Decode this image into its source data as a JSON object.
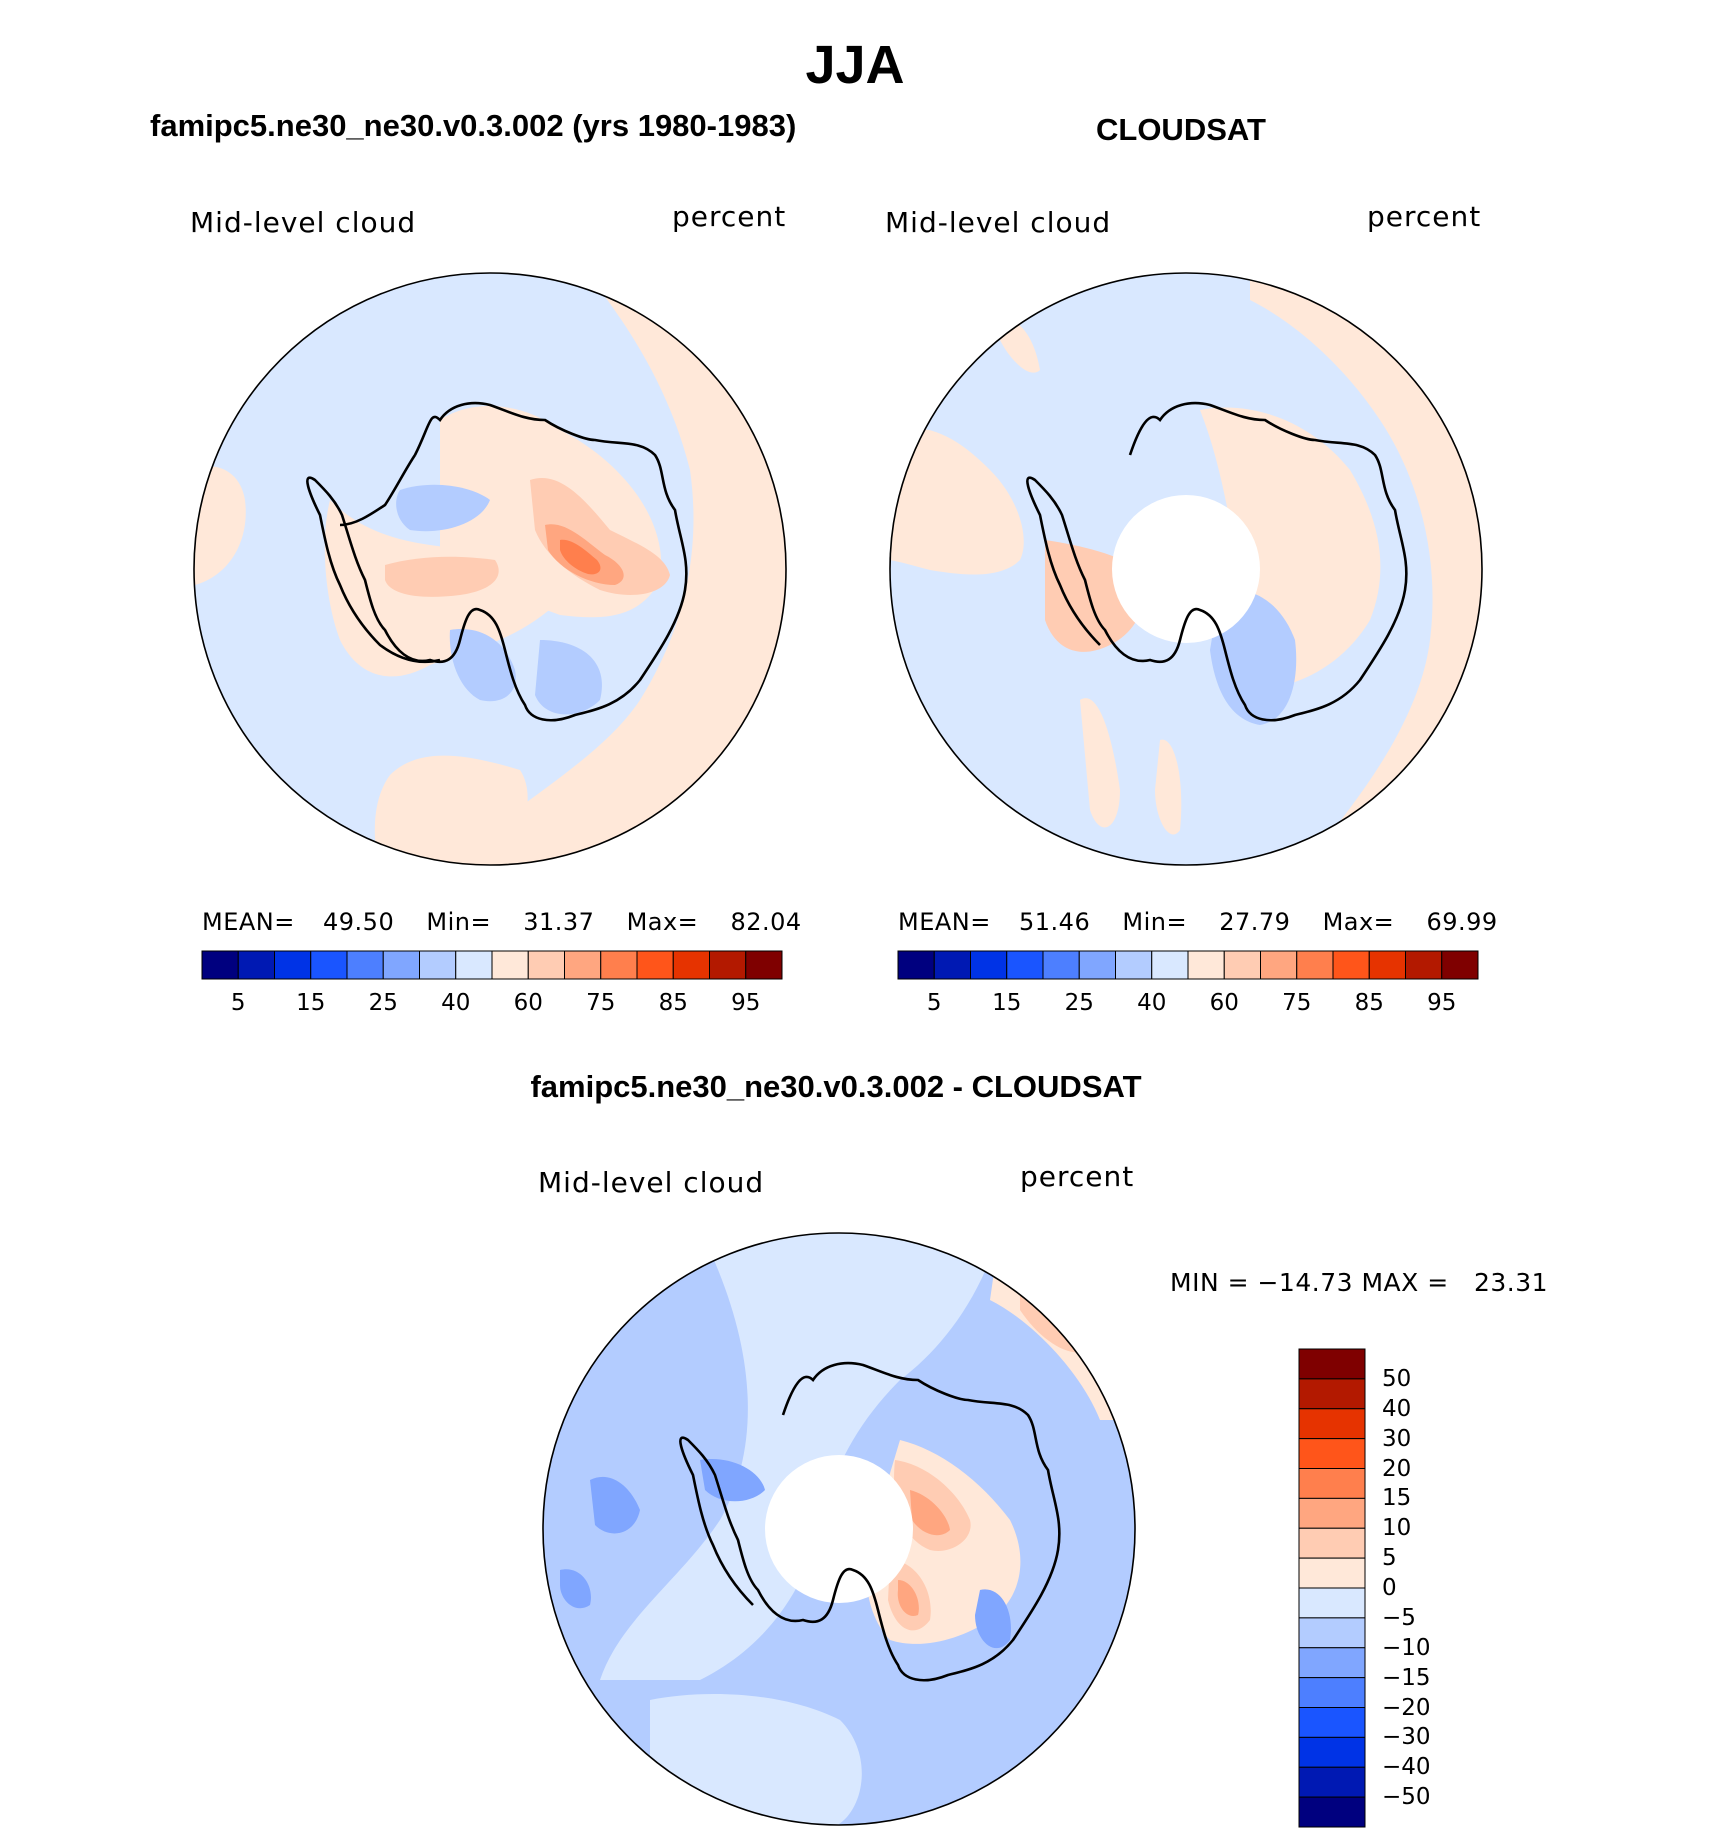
{
  "figure": {
    "title": "JJA",
    "left_panel_title": "famipc5.ne30_ne30.v0.3.002 (yrs 1980-1983)",
    "right_panel_title": "CLOUDSAT",
    "diff_panel_title": "famipc5.ne30_ne30.v0.3.002 - CLOUDSAT"
  },
  "colors": {
    "abs_scale": [
      "#00007f",
      "#0019b3",
      "#0033e6",
      "#1a55ff",
      "#4d7fff",
      "#80a6ff",
      "#b3ccff",
      "#d9e8ff",
      "#ffe8d9",
      "#ffccb3",
      "#ffa680",
      "#ff7f4d",
      "#ff551a",
      "#e63300",
      "#b31900",
      "#7f0000"
    ],
    "diff_scale": [
      "#00007f",
      "#0019b3",
      "#0033e6",
      "#1a55ff",
      "#4d7fff",
      "#80a6ff",
      "#b3ccff",
      "#d9e8ff",
      "#ffe8d9",
      "#ffccb3",
      "#ffa680",
      "#ff7f4d",
      "#ff551a",
      "#e63300",
      "#b31900",
      "#7f0000"
    ],
    "coast": "#000000"
  },
  "chart_data": [
    {
      "type": "heatmap",
      "projection": "south-polar-stereographic",
      "title": "famipc5.ne30_ne30.v0.3.002 (yrs 1980-1983)",
      "variable": "Mid-level cloud",
      "units": "percent",
      "stats": {
        "mean_label": "MEAN=",
        "mean": "49.50",
        "min_label": "Min=",
        "min": "31.37",
        "max_label": "Max=",
        "max": "82.04"
      },
      "colorbar_ticks": [
        "5",
        "15",
        "25",
        "40",
        "60",
        "75",
        "85",
        "95"
      ],
      "regions": [
        {
          "name": "background",
          "level": 7
        },
        {
          "name": "east-ring-sector",
          "level": 8
        },
        {
          "name": "ne-ring-blob",
          "level": 9
        },
        {
          "name": "west-edge-blob",
          "level": 8
        },
        {
          "name": "south-ring-blob",
          "level": 8
        },
        {
          "name": "peninsula-band",
          "level": 8
        },
        {
          "name": "east-antarctic-interior",
          "level": 8
        },
        {
          "name": "central-ridge",
          "level": 9
        },
        {
          "name": "east-ridge",
          "level": 9
        },
        {
          "name": "east-ridge-core",
          "level": 10
        },
        {
          "name": "east-ridge-max",
          "level": 11
        },
        {
          "name": "weddell-low",
          "level": 6
        },
        {
          "name": "ross-low",
          "level": 6
        },
        {
          "name": "pacific-low",
          "level": 6
        }
      ]
    },
    {
      "type": "heatmap",
      "projection": "south-polar-stereographic",
      "title": "CLOUDSAT",
      "variable": "Mid-level cloud",
      "units": "percent",
      "stats": {
        "mean_label": "MEAN=",
        "mean": "51.46",
        "min_label": "Min=",
        "min": "27.79",
        "max_label": "Max=",
        "max": "69.99"
      },
      "colorbar_ticks": [
        "5",
        "15",
        "25",
        "40",
        "60",
        "75",
        "85",
        "95"
      ],
      "missing_region": "pole-hole",
      "regions": [
        {
          "name": "background",
          "level": 7
        },
        {
          "name": "east-ring-sector",
          "level": 8
        },
        {
          "name": "west-ring-sector",
          "level": 8
        },
        {
          "name": "peninsula-band",
          "level": 9
        },
        {
          "name": "east-antarctic",
          "level": 8
        },
        {
          "name": "ross-low",
          "level": 6
        },
        {
          "name": "ring-streaks",
          "level": 8
        }
      ]
    },
    {
      "type": "heatmap",
      "projection": "south-polar-stereographic",
      "title": "famipc5.ne30_ne30.v0.3.002 - CLOUDSAT",
      "variable": "Mid-level cloud",
      "units": "percent",
      "range_label": "MIN = −14.73 MAX =   23.31",
      "min": -14.73,
      "max": 23.31,
      "colorbar_ticks": [
        "50",
        "40",
        "30",
        "20",
        "15",
        "10",
        "5",
        "0",
        "−5",
        "−10",
        "−15",
        "−20",
        "−30",
        "−40",
        "−50"
      ],
      "missing_region": "pole-hole",
      "regions": [
        {
          "name": "background",
          "level": 6
        },
        {
          "name": "ocean-light",
          "level": 7
        },
        {
          "name": "east-positive",
          "level": 8
        },
        {
          "name": "east-positive-core",
          "level": 9
        },
        {
          "name": "east-positive-max",
          "level": 10
        },
        {
          "name": "west-negative",
          "level": 5
        },
        {
          "name": "ne-edge-positive",
          "level": 9
        }
      ]
    }
  ]
}
